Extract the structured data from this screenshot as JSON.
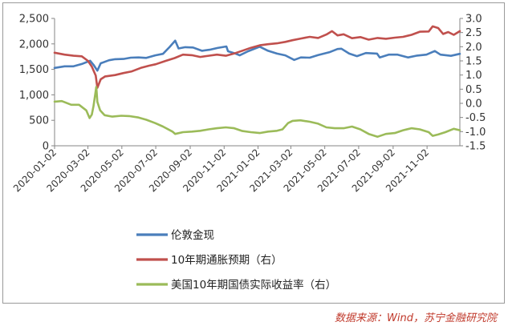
{
  "source_note": "数据来源：Wind，苏宁金融研究院",
  "chart_data": {
    "type": "line",
    "title": "",
    "xlabel": "",
    "ylabel_left": "",
    "ylabel_right": "",
    "x_ticks": [
      "2020-01-02",
      "2020-03-02",
      "2020-05-02",
      "2020-07-02",
      "2020-09-02",
      "2020-11-02",
      "2021-01-02",
      "2021-03-02",
      "2021-05-02",
      "2021-07-02",
      "2021-09-02",
      "2021-11-02"
    ],
    "x_range": [
      "2020-01-02",
      "2021-12-31"
    ],
    "y_left": {
      "min": 0,
      "max": 2500,
      "ticks": [
        "0",
        "500",
        "1,000",
        "1,500",
        "2,000",
        "2,500"
      ],
      "tick_values": [
        0,
        500,
        1000,
        1500,
        2000,
        2500
      ]
    },
    "y_right": {
      "min": -1.5,
      "max": 3.0,
      "ticks": [
        "-1.5",
        "-1.0",
        "-0.5",
        "0.0",
        "0.5",
        "1.0",
        "1.5",
        "2.0",
        "2.5",
        "3.0"
      ],
      "tick_values": [
        -1.5,
        -1.0,
        -0.5,
        0.0,
        0.5,
        1.0,
        1.5,
        2.0,
        2.5,
        3.0
      ]
    },
    "grid": false,
    "legend_position": "bottom",
    "series": [
      {
        "name": "伦敦金现",
        "axis": "left",
        "color": "#4a7ebb",
        "points": [
          [
            "2020-01-02",
            1528
          ],
          [
            "2020-01-20",
            1560
          ],
          [
            "2020-02-05",
            1560
          ],
          [
            "2020-02-20",
            1605
          ],
          [
            "2020-03-06",
            1670
          ],
          [
            "2020-03-12",
            1590
          ],
          [
            "2020-03-19",
            1475
          ],
          [
            "2020-03-25",
            1620
          ],
          [
            "2020-04-09",
            1680
          ],
          [
            "2020-04-20",
            1700
          ],
          [
            "2020-05-05",
            1705
          ],
          [
            "2020-05-18",
            1730
          ],
          [
            "2020-06-01",
            1735
          ],
          [
            "2020-06-15",
            1725
          ],
          [
            "2020-07-01",
            1775
          ],
          [
            "2020-07-15",
            1805
          ],
          [
            "2020-07-27",
            1940
          ],
          [
            "2020-08-06",
            2065
          ],
          [
            "2020-08-12",
            1910
          ],
          [
            "2020-08-24",
            1935
          ],
          [
            "2020-09-07",
            1930
          ],
          [
            "2020-09-23",
            1865
          ],
          [
            "2020-10-07",
            1885
          ],
          [
            "2020-10-21",
            1920
          ],
          [
            "2020-11-06",
            1950
          ],
          [
            "2020-11-09",
            1855
          ],
          [
            "2020-11-23",
            1808
          ],
          [
            "2020-11-30",
            1775
          ],
          [
            "2020-12-15",
            1855
          ],
          [
            "2021-01-05",
            1945
          ],
          [
            "2021-01-20",
            1865
          ],
          [
            "2021-02-05",
            1810
          ],
          [
            "2021-02-20",
            1775
          ],
          [
            "2021-03-08",
            1685
          ],
          [
            "2021-03-20",
            1735
          ],
          [
            "2021-04-05",
            1730
          ],
          [
            "2021-04-20",
            1780
          ],
          [
            "2021-05-10",
            1835
          ],
          [
            "2021-05-25",
            1900
          ],
          [
            "2021-06-01",
            1905
          ],
          [
            "2021-06-15",
            1810
          ],
          [
            "2021-06-29",
            1760
          ],
          [
            "2021-07-15",
            1820
          ],
          [
            "2021-08-04",
            1810
          ],
          [
            "2021-08-09",
            1735
          ],
          [
            "2021-08-25",
            1790
          ],
          [
            "2021-09-10",
            1790
          ],
          [
            "2021-09-29",
            1735
          ],
          [
            "2021-10-15",
            1770
          ],
          [
            "2021-11-01",
            1790
          ],
          [
            "2021-11-16",
            1860
          ],
          [
            "2021-11-26",
            1790
          ],
          [
            "2021-12-15",
            1765
          ],
          [
            "2021-12-31",
            1805
          ]
        ]
      },
      {
        "name": "10年期通胀预期（右）",
        "axis": "right",
        "color": "#c0504d",
        "points": [
          [
            "2020-01-02",
            1.79
          ],
          [
            "2020-01-20",
            1.72
          ],
          [
            "2020-02-05",
            1.68
          ],
          [
            "2020-02-20",
            1.66
          ],
          [
            "2020-03-02",
            1.5
          ],
          [
            "2020-03-09",
            1.3
          ],
          [
            "2020-03-16",
            0.98
          ],
          [
            "2020-03-19",
            0.55
          ],
          [
            "2020-03-25",
            0.85
          ],
          [
            "2020-04-02",
            0.95
          ],
          [
            "2020-04-20",
            1.0
          ],
          [
            "2020-05-05",
            1.07
          ],
          [
            "2020-05-20",
            1.13
          ],
          [
            "2020-06-05",
            1.25
          ],
          [
            "2020-06-20",
            1.33
          ],
          [
            "2020-07-02",
            1.38
          ],
          [
            "2020-07-20",
            1.5
          ],
          [
            "2020-08-05",
            1.6
          ],
          [
            "2020-08-20",
            1.72
          ],
          [
            "2020-09-05",
            1.7
          ],
          [
            "2020-09-20",
            1.64
          ],
          [
            "2020-10-05",
            1.68
          ],
          [
            "2020-10-20",
            1.72
          ],
          [
            "2020-11-05",
            1.68
          ],
          [
            "2020-11-20",
            1.76
          ],
          [
            "2020-12-05",
            1.86
          ],
          [
            "2020-12-20",
            1.96
          ],
          [
            "2021-01-05",
            2.05
          ],
          [
            "2021-01-20",
            2.09
          ],
          [
            "2021-02-05",
            2.12
          ],
          [
            "2021-02-20",
            2.17
          ],
          [
            "2021-03-05",
            2.23
          ],
          [
            "2021-03-20",
            2.29
          ],
          [
            "2021-04-05",
            2.35
          ],
          [
            "2021-04-20",
            2.31
          ],
          [
            "2021-05-05",
            2.43
          ],
          [
            "2021-05-15",
            2.55
          ],
          [
            "2021-05-25",
            2.4
          ],
          [
            "2021-06-05",
            2.44
          ],
          [
            "2021-06-20",
            2.3
          ],
          [
            "2021-07-05",
            2.34
          ],
          [
            "2021-07-20",
            2.25
          ],
          [
            "2021-08-05",
            2.31
          ],
          [
            "2021-08-20",
            2.28
          ],
          [
            "2021-09-05",
            2.32
          ],
          [
            "2021-09-20",
            2.35
          ],
          [
            "2021-10-05",
            2.42
          ],
          [
            "2021-10-20",
            2.53
          ],
          [
            "2021-11-05",
            2.54
          ],
          [
            "2021-11-12",
            2.72
          ],
          [
            "2021-11-22",
            2.66
          ],
          [
            "2021-12-01",
            2.45
          ],
          [
            "2021-12-10",
            2.52
          ],
          [
            "2021-12-20",
            2.42
          ],
          [
            "2021-12-31",
            2.55
          ]
        ]
      },
      {
        "name": "美国10年期国债实际收益率（右）",
        "axis": "right",
        "color": "#9bbb59",
        "points": [
          [
            "2020-01-02",
            0.06
          ],
          [
            "2020-01-15",
            0.08
          ],
          [
            "2020-02-01",
            -0.05
          ],
          [
            "2020-02-15",
            -0.05
          ],
          [
            "2020-02-28",
            -0.25
          ],
          [
            "2020-03-05",
            -0.52
          ],
          [
            "2020-03-09",
            -0.4
          ],
          [
            "2020-03-12",
            -0.1
          ],
          [
            "2020-03-17",
            0.58
          ],
          [
            "2020-03-19",
            0.05
          ],
          [
            "2020-03-24",
            -0.25
          ],
          [
            "2020-04-01",
            -0.42
          ],
          [
            "2020-04-15",
            -0.47
          ],
          [
            "2020-05-01",
            -0.44
          ],
          [
            "2020-05-15",
            -0.45
          ],
          [
            "2020-06-01",
            -0.5
          ],
          [
            "2020-06-15",
            -0.58
          ],
          [
            "2020-07-01",
            -0.7
          ],
          [
            "2020-07-15",
            -0.82
          ],
          [
            "2020-08-01",
            -1.0
          ],
          [
            "2020-08-06",
            -1.08
          ],
          [
            "2020-08-20",
            -1.02
          ],
          [
            "2020-09-05",
            -1.0
          ],
          [
            "2020-09-20",
            -0.97
          ],
          [
            "2020-10-05",
            -0.92
          ],
          [
            "2020-10-20",
            -0.88
          ],
          [
            "2020-11-05",
            -0.85
          ],
          [
            "2020-11-20",
            -0.88
          ],
          [
            "2020-12-05",
            -0.98
          ],
          [
            "2020-12-20",
            -1.02
          ],
          [
            "2021-01-05",
            -1.05
          ],
          [
            "2021-01-20",
            -1.0
          ],
          [
            "2021-02-05",
            -0.97
          ],
          [
            "2021-02-15",
            -0.92
          ],
          [
            "2021-02-25",
            -0.7
          ],
          [
            "2021-03-05",
            -0.62
          ],
          [
            "2021-03-19",
            -0.6
          ],
          [
            "2021-04-05",
            -0.65
          ],
          [
            "2021-04-20",
            -0.72
          ],
          [
            "2021-05-05",
            -0.85
          ],
          [
            "2021-05-20",
            -0.88
          ],
          [
            "2021-06-05",
            -0.88
          ],
          [
            "2021-06-20",
            -0.82
          ],
          [
            "2021-07-05",
            -0.92
          ],
          [
            "2021-07-20",
            -1.08
          ],
          [
            "2021-08-05",
            -1.18
          ],
          [
            "2021-08-20",
            -1.08
          ],
          [
            "2021-09-05",
            -1.05
          ],
          [
            "2021-09-20",
            -0.95
          ],
          [
            "2021-10-05",
            -0.88
          ],
          [
            "2021-10-20",
            -0.92
          ],
          [
            "2021-11-05",
            -1.02
          ],
          [
            "2021-11-12",
            -1.15
          ],
          [
            "2021-11-22",
            -1.1
          ],
          [
            "2021-12-05",
            -1.02
          ],
          [
            "2021-12-20",
            -0.9
          ],
          [
            "2021-12-31",
            -0.95
          ]
        ]
      }
    ]
  }
}
